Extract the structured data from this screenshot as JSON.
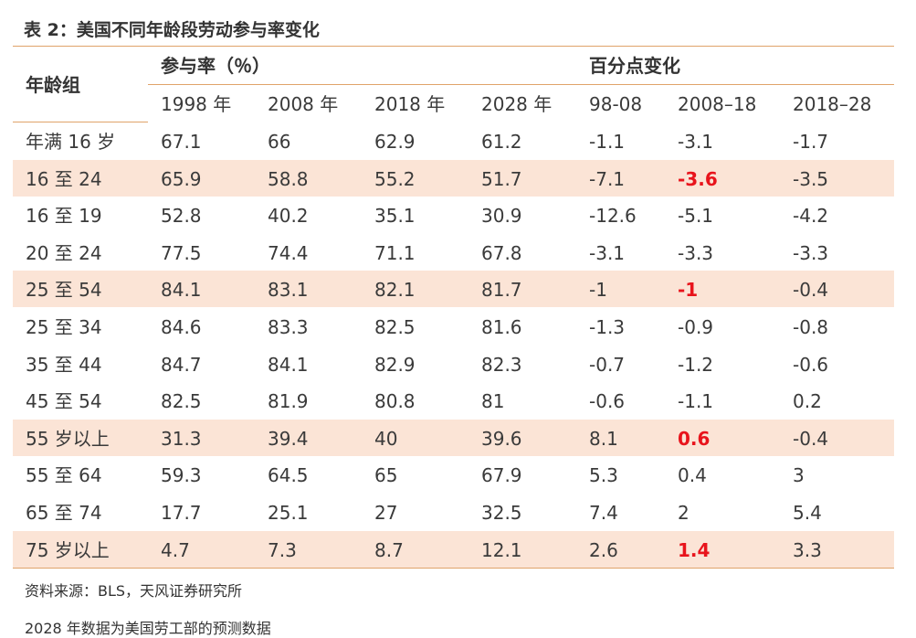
{
  "title": "表 2：美国不同年龄段劳动参与率变化",
  "header": {
    "group_label": "年龄组",
    "participation_label": "参与率（％）",
    "change_label": "百分点变化",
    "columns": [
      "1998 年",
      "2008 年",
      "2018 年",
      "2028 年",
      "98-08",
      "2008–18",
      "2018–28"
    ]
  },
  "rows": [
    {
      "label": "年满 16 岁",
      "values": [
        "67.1",
        "66",
        "62.9",
        "61.2",
        "-1.1",
        "-3.1",
        "-1.7"
      ],
      "highlight": false,
      "red_col": -1
    },
    {
      "label": "16 至 24",
      "values": [
        "65.9",
        "58.8",
        "55.2",
        "51.7",
        "-7.1",
        "-3.6",
        "-3.5"
      ],
      "highlight": true,
      "red_col": 5
    },
    {
      "label": "16 至 19",
      "values": [
        "52.8",
        "40.2",
        "35.1",
        "30.9",
        "-12.6",
        "-5.1",
        "-4.2"
      ],
      "highlight": false,
      "red_col": -1
    },
    {
      "label": "20 至 24",
      "values": [
        "77.5",
        "74.4",
        "71.1",
        "67.8",
        "-3.1",
        "-3.3",
        "-3.3"
      ],
      "highlight": false,
      "red_col": -1
    },
    {
      "label": "25 至 54",
      "values": [
        "84.1",
        "83.1",
        "82.1",
        "81.7",
        "-1",
        "-1",
        "-0.4"
      ],
      "highlight": true,
      "red_col": 5
    },
    {
      "label": "25 至 34",
      "values": [
        "84.6",
        "83.3",
        "82.5",
        "81.6",
        "-1.3",
        "-0.9",
        "-0.8"
      ],
      "highlight": false,
      "red_col": -1
    },
    {
      "label": "35 至 44",
      "values": [
        "84.7",
        "84.1",
        "82.9",
        "82.3",
        "-0.7",
        "-1.2",
        "-0.6"
      ],
      "highlight": false,
      "red_col": -1
    },
    {
      "label": "45 至 54",
      "values": [
        "82.5",
        "81.9",
        "80.8",
        "81",
        "-0.6",
        "-1.1",
        "0.2"
      ],
      "highlight": false,
      "red_col": -1
    },
    {
      "label": "55 岁以上",
      "values": [
        "31.3",
        "39.4",
        "40",
        "39.6",
        "8.1",
        "0.6",
        "-0.4"
      ],
      "highlight": true,
      "red_col": 5
    },
    {
      "label": "55 至 64",
      "values": [
        "59.3",
        "64.5",
        "65",
        "67.9",
        "5.3",
        "0.4",
        "3"
      ],
      "highlight": false,
      "red_col": -1
    },
    {
      "label": "65 至 74",
      "values": [
        "17.7",
        "25.1",
        "27",
        "32.5",
        "7.4",
        "2",
        "5.4"
      ],
      "highlight": false,
      "red_col": -1
    },
    {
      "label": "75 岁以上",
      "values": [
        "4.7",
        "7.3",
        "8.7",
        "12.1",
        "2.6",
        "1.4",
        "3.3"
      ],
      "highlight": true,
      "red_col": 5
    }
  ],
  "source": "资料来源：BLS，天风证券研究所",
  "footnote": "2028 年数据为美国劳工部的预测数据",
  "colors": {
    "rule": "#e0a36a",
    "highlight": "#fbe4d6",
    "red": "#e8141c"
  }
}
